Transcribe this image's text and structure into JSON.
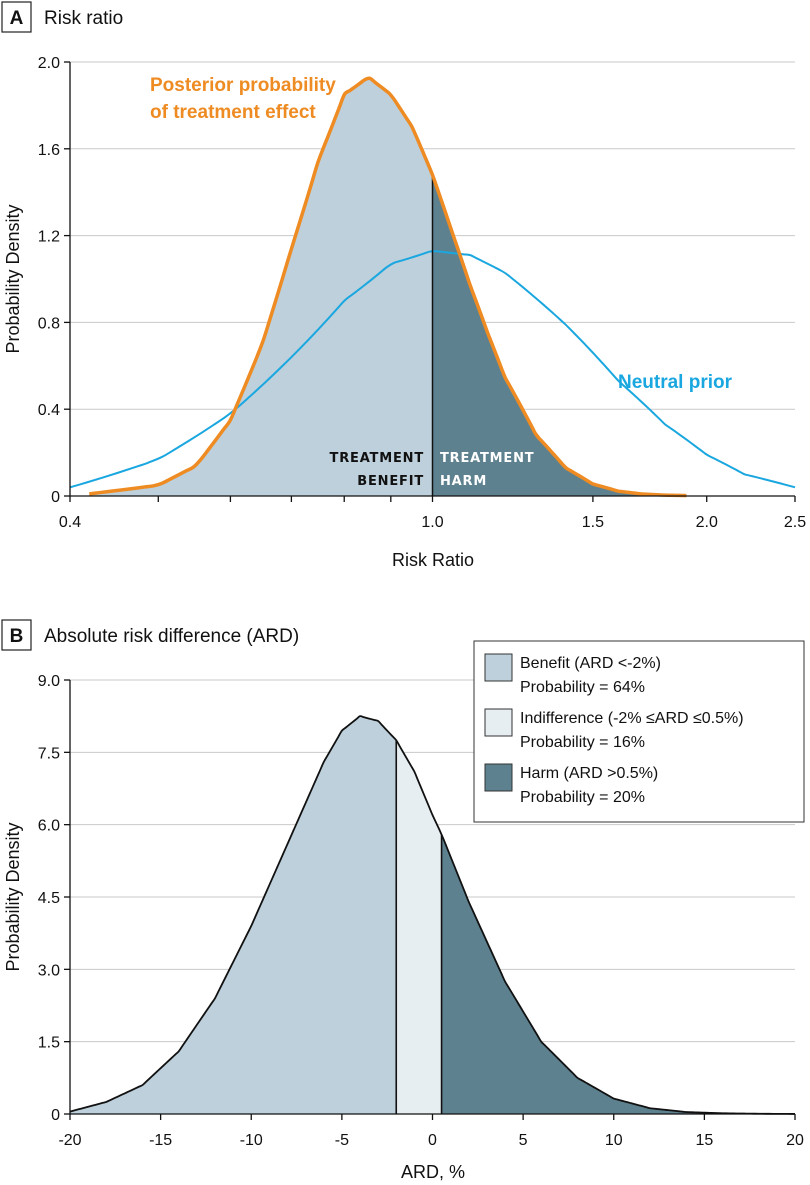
{
  "chart_data": [
    {
      "panel_label": "A",
      "title": "Risk ratio",
      "type": "area",
      "xlabel": "Risk Ratio",
      "ylabel": "Probability Density",
      "x_scale": "log",
      "xlim": [
        0.4,
        2.5
      ],
      "ylim": [
        0,
        2.0
      ],
      "x_ticks": [
        0.4,
        1.0,
        1.5,
        2.0,
        2.5
      ],
      "x_minor_ticks": [
        0.5,
        0.6,
        0.7,
        0.8,
        0.9
      ],
      "y_ticks": [
        0,
        0.4,
        0.8,
        1.2,
        1.6,
        2.0
      ],
      "y_tick_labels": [
        "0",
        "0.4",
        "0.8",
        "1.2",
        "1.6",
        "2.0"
      ],
      "grid": "horizontal",
      "series": [
        {
          "name": "Posterior probability of treatment effect",
          "label_lines": [
            "Posterior probability",
            "of treatment effect"
          ],
          "color": "#ee8b22",
          "x": [
            0.42,
            0.5,
            0.55,
            0.6,
            0.65,
            0.7,
            0.75,
            0.8,
            0.85,
            0.9,
            0.95,
            1.0,
            1.05,
            1.1,
            1.15,
            1.2,
            1.3,
            1.4,
            1.5,
            1.6,
            1.7,
            1.8,
            1.9
          ],
          "y": [
            0.01,
            0.05,
            0.14,
            0.35,
            0.7,
            1.14,
            1.55,
            1.85,
            1.93,
            1.85,
            1.7,
            1.48,
            1.22,
            0.97,
            0.75,
            0.55,
            0.28,
            0.13,
            0.055,
            0.022,
            0.009,
            0.004,
            0.002
          ]
        },
        {
          "name": "Neutral prior",
          "label_lines": [
            "Neutral prior"
          ],
          "color": "#1aa7e0",
          "x": [
            0.4,
            0.5,
            0.6,
            0.7,
            0.8,
            0.9,
            1.0,
            1.1,
            1.2,
            1.3,
            1.4,
            1.5,
            1.6,
            1.8,
            2.0,
            2.2,
            2.5
          ],
          "y": [
            0.04,
            0.17,
            0.38,
            0.64,
            0.9,
            1.07,
            1.13,
            1.11,
            1.03,
            0.91,
            0.79,
            0.66,
            0.53,
            0.33,
            0.19,
            0.1,
            0.04
          ]
        }
      ],
      "split_at": 1.0,
      "region_labels": {
        "left": [
          "TREATMENT",
          "BENEFIT"
        ],
        "right": [
          "TREATMENT",
          "HARM"
        ]
      },
      "colors": {
        "benefit": "#bdd0db",
        "harm": "#5e8190"
      }
    },
    {
      "panel_label": "B",
      "title": "Absolute risk difference (ARD)",
      "type": "area",
      "xlabel": "ARD, %",
      "ylabel": "Probability Density",
      "xlim": [
        -20,
        20
      ],
      "ylim": [
        0,
        9.0
      ],
      "x_ticks": [
        -20,
        -15,
        -10,
        -5,
        0,
        5,
        10,
        15,
        20
      ],
      "x_tick_labels": [
        "-20",
        "-15",
        "-10",
        "-5",
        "0",
        "5",
        "10",
        "15",
        "20"
      ],
      "y_ticks": [
        0,
        1.5,
        3.0,
        4.5,
        6.0,
        7.5,
        9.0
      ],
      "y_tick_labels": [
        "0",
        "1.5",
        "3.0",
        "4.5",
        "6.0",
        "7.5",
        "9.0"
      ],
      "grid": "horizontal",
      "curve": {
        "x": [
          -20,
          -18,
          -16,
          -14,
          -12,
          -10,
          -8,
          -6,
          -5,
          -4,
          -3,
          -2,
          -1,
          0,
          0.5,
          2,
          4,
          6,
          8,
          10,
          12,
          14,
          16,
          18,
          20
        ],
        "y": [
          0.05,
          0.25,
          0.6,
          1.3,
          2.4,
          3.9,
          5.6,
          7.3,
          7.95,
          8.25,
          8.15,
          7.75,
          7.1,
          6.2,
          5.8,
          4.4,
          2.75,
          1.5,
          0.75,
          0.32,
          0.12,
          0.04,
          0.015,
          0.005,
          0.001
        ]
      },
      "regions": [
        {
          "name": "Benefit",
          "from": -20,
          "to": -2,
          "color": "#bdd0db"
        },
        {
          "name": "Indifference",
          "from": -2,
          "to": 0.5,
          "color": "#e7eef2"
        },
        {
          "name": "Harm",
          "from": 0.5,
          "to": 20,
          "color": "#5e8190"
        }
      ],
      "legend": {
        "position": "top-right",
        "entries": [
          {
            "line1": "Benefit (ARD <-2%)",
            "line2": "Probability = 64%",
            "color": "#bdd0db"
          },
          {
            "line1": "Indifference (-2% ≤ARD ≤0.5%)",
            "line2": "Probability = 16%",
            "color": "#e7eef2"
          },
          {
            "line1": "Harm (ARD >0.5%)",
            "line2": "Probability = 20%",
            "color": "#5e8190"
          }
        ]
      }
    }
  ]
}
